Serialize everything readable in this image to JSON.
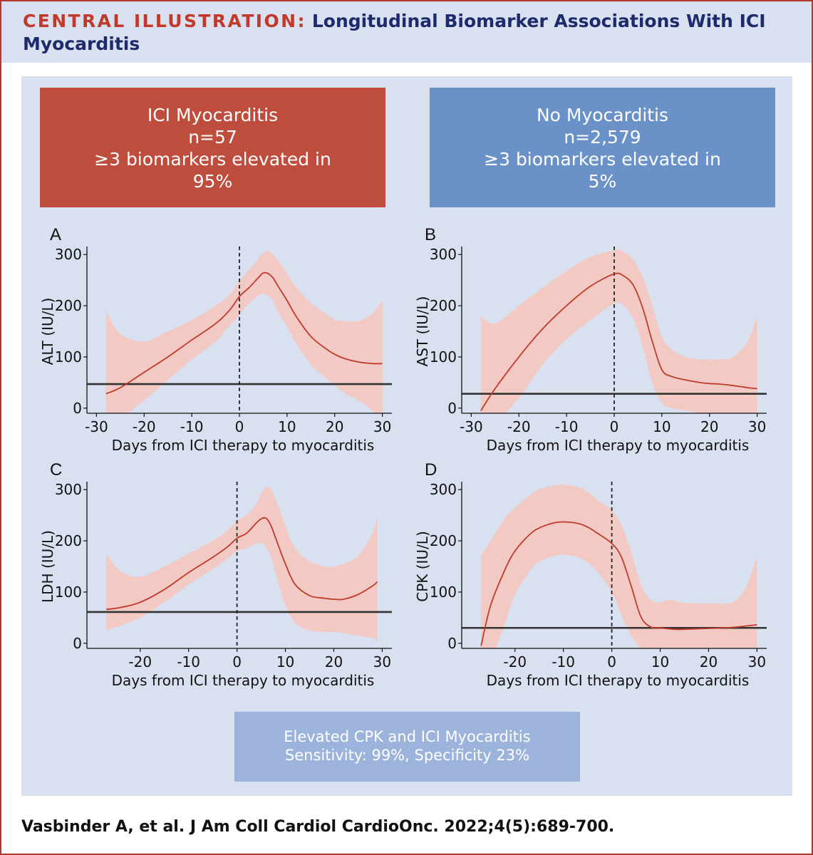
{
  "header": {
    "label": "CENTRAL ILLUSTRATION:",
    "title": "Longitudinal Biomarker Associations With ICI Myocarditis"
  },
  "groups": [
    {
      "title": "ICI Myocarditis",
      "n": "n=57",
      "line1": "≥3 biomarkers elevated in",
      "line2": "95%",
      "color": "#bf4d3d"
    },
    {
      "title": "No Myocarditis",
      "n": "n=2,579",
      "line1": "≥3 biomarkers elevated in",
      "line2": "5%",
      "color": "#6b92c8"
    }
  ],
  "summary": {
    "line1": "Elevated CPK and ICI Myocarditis",
    "line2": "Sensitivity: 99%, Specificity 23%"
  },
  "citation": "Vasbinder A, et al. J Am Coll Cardiol CardioOnc. 2022;4(5):689-700.",
  "colors": {
    "curve": "#bf3b2b",
    "band": "#f2c9c3",
    "reference_line": "#333333"
  },
  "chart_data": [
    {
      "type": "line",
      "panel": "A",
      "xlabel": "Days from ICI therapy to myocarditis",
      "ylabel": "ALT (IU/L)",
      "xticks": [
        -30,
        -20,
        -10,
        0,
        10,
        20,
        30
      ],
      "yticks": [
        0,
        100,
        200,
        300
      ],
      "xlim": [
        -32,
        32
      ],
      "ylim": [
        -10,
        310
      ],
      "vline": 0,
      "hline": 47,
      "x": [
        -28,
        -25,
        -20,
        -15,
        -10,
        -5,
        -2,
        0,
        2,
        4,
        5,
        6,
        7,
        8,
        10,
        12,
        15,
        18,
        20,
        22,
        25,
        28,
        30
      ],
      "y": [
        28,
        40,
        70,
        100,
        133,
        165,
        192,
        218,
        235,
        255,
        264,
        263,
        255,
        240,
        210,
        178,
        140,
        117,
        105,
        97,
        90,
        87,
        87
      ],
      "lower": [
        -30,
        -20,
        15,
        55,
        95,
        130,
        162,
        182,
        205,
        220,
        223,
        220,
        210,
        190,
        160,
        125,
        85,
        60,
        45,
        30,
        15,
        -5,
        -20
      ],
      "upper": [
        190,
        145,
        130,
        150,
        172,
        200,
        222,
        248,
        270,
        292,
        303,
        307,
        300,
        290,
        262,
        235,
        205,
        185,
        172,
        170,
        170,
        185,
        210
      ]
    },
    {
      "type": "line",
      "panel": "B",
      "xlabel": "Days from ICI therapy to myocarditis",
      "ylabel": "AST (IU/L)",
      "xticks": [
        -30,
        -20,
        -10,
        0,
        10,
        20,
        30
      ],
      "yticks": [
        0,
        100,
        200,
        300
      ],
      "xlim": [
        -32,
        32
      ],
      "ylim": [
        -10,
        310
      ],
      "vline": 0,
      "hline": 28,
      "x": [
        -28,
        -25,
        -20,
        -15,
        -10,
        -5,
        0,
        2,
        4,
        6,
        8,
        10,
        12,
        15,
        18,
        20,
        22,
        25,
        28,
        30
      ],
      "y": [
        -5,
        38,
        100,
        155,
        200,
        238,
        262,
        258,
        240,
        195,
        130,
        75,
        62,
        55,
        50,
        48,
        47,
        44,
        40,
        38
      ],
      "lower": [
        -40,
        -30,
        20,
        85,
        135,
        172,
        205,
        200,
        175,
        120,
        50,
        10,
        0,
        -5,
        -10,
        -10,
        -12,
        -15,
        -15,
        -15
      ],
      "upper": [
        180,
        165,
        200,
        235,
        268,
        295,
        308,
        305,
        290,
        255,
        200,
        140,
        115,
        100,
        95,
        95,
        95,
        100,
        130,
        180
      ]
    },
    {
      "type": "line",
      "panel": "C",
      "xlabel": "Days from ICI therapy to myocarditis",
      "ylabel": "LDH (IU/L)",
      "xticks": [
        -20,
        -10,
        0,
        10,
        20,
        30
      ],
      "yticks": [
        0,
        100,
        200,
        300
      ],
      "xlim": [
        -31,
        32
      ],
      "ylim": [
        -10,
        310
      ],
      "vline": 0,
      "hline": 61,
      "x": [
        -27,
        -24,
        -20,
        -15,
        -10,
        -5,
        -2,
        0,
        2,
        4,
        5,
        6,
        7,
        8,
        10,
        12,
        15,
        18,
        20,
        22,
        25,
        28,
        29
      ],
      "y": [
        66,
        70,
        80,
        105,
        138,
        168,
        188,
        205,
        215,
        235,
        243,
        244,
        230,
        205,
        155,
        115,
        93,
        88,
        86,
        86,
        95,
        112,
        120
      ],
      "lower": [
        25,
        35,
        50,
        80,
        115,
        145,
        165,
        180,
        185,
        195,
        195,
        188,
        168,
        135,
        75,
        40,
        25,
        22,
        22,
        20,
        15,
        10,
        5
      ],
      "upper": [
        175,
        140,
        130,
        150,
        175,
        200,
        220,
        240,
        250,
        272,
        292,
        305,
        300,
        280,
        230,
        185,
        160,
        150,
        150,
        155,
        170,
        215,
        250
      ]
    },
    {
      "type": "line",
      "panel": "D",
      "xlabel": "Days from ICI therapy to myocarditis",
      "ylabel": "CPK (IU/L)",
      "xticks": [
        -20,
        -10,
        0,
        10,
        20,
        30
      ],
      "yticks": [
        0,
        100,
        200,
        300
      ],
      "xlim": [
        -31,
        32
      ],
      "ylim": [
        -10,
        310
      ],
      "vline": 0,
      "hline": 30,
      "x": [
        -27,
        -25,
        -22,
        -20,
        -17,
        -15,
        -12,
        -10,
        -7,
        -5,
        -3,
        0,
        2,
        4,
        6,
        8,
        10,
        12,
        14,
        17,
        20,
        25,
        28,
        30
      ],
      "y": [
        -5,
        75,
        145,
        180,
        212,
        225,
        235,
        237,
        234,
        227,
        215,
        195,
        168,
        112,
        52,
        32,
        30,
        28,
        27,
        28,
        29,
        31,
        34,
        36
      ],
      "lower": [
        -30,
        -30,
        40,
        95,
        140,
        160,
        170,
        173,
        168,
        158,
        140,
        100,
        55,
        15,
        -10,
        -20,
        -20,
        -20,
        -20,
        -20,
        -20,
        -20,
        -20,
        -20
      ],
      "upper": [
        170,
        200,
        245,
        265,
        288,
        300,
        308,
        310,
        305,
        295,
        280,
        260,
        230,
        178,
        115,
        85,
        80,
        85,
        80,
        78,
        78,
        80,
        115,
        172
      ]
    }
  ]
}
